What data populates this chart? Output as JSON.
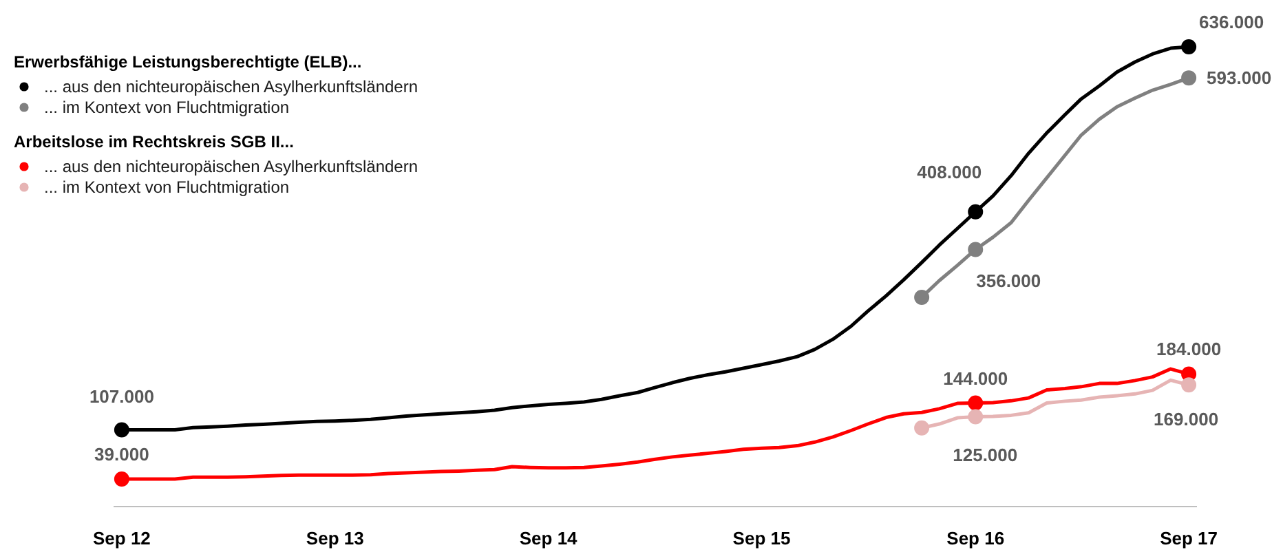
{
  "chart_data": {
    "type": "line",
    "legend_title": [
      "Erwerbsfähige Leistungsberechtigte (ELB)...",
      "Arbeitslose im Rechtskreis SGB II..."
    ],
    "legend": "top left",
    "tick_labels": "x",
    "line_style": "solid",
    "xlim": [
      "2012-08-18",
      "2017-09-15"
    ],
    "xticks": [
      {
        "value": "2012-09",
        "label": "Sep 12"
      },
      {
        "value": "2013-09",
        "label": "Sep 13"
      },
      {
        "value": "2014-09",
        "label": "Sep 14"
      },
      {
        "value": "2015-09",
        "label": "Sep 15"
      },
      {
        "value": "2016-09",
        "label": "Sep 16"
      },
      {
        "value": "2017-09",
        "label": "Sep 17"
      }
    ],
    "x": [
      "2012-09",
      "2012-10",
      "2012-11",
      "2012-12",
      "2013-01",
      "2013-02",
      "2013-03",
      "2013-04",
      "2013-05",
      "2013-06",
      "2013-07",
      "2013-08",
      "2013-09",
      "2013-10",
      "2013-11",
      "2013-12",
      "2014-01",
      "2014-02",
      "2014-03",
      "2014-04",
      "2014-05",
      "2014-06",
      "2014-07",
      "2014-08",
      "2014-09",
      "2014-10",
      "2014-11",
      "2014-12",
      "2015-01",
      "2015-02",
      "2015-03",
      "2015-04",
      "2015-05",
      "2015-06",
      "2015-07",
      "2015-08",
      "2015-09",
      "2015-10",
      "2015-11",
      "2015-12",
      "2016-01",
      "2016-02",
      "2016-03",
      "2016-04",
      "2016-05",
      "2016-06",
      "2016-07",
      "2016-08",
      "2016-09",
      "2016-10",
      "2016-11",
      "2016-12",
      "2017-01",
      "2017-02",
      "2017-03",
      "2017-04",
      "2017-05",
      "2017-06",
      "2017-07",
      "2017-08",
      "2017-09"
    ],
    "series": [
      {
        "name": "... aus den nichteuropäischen Asylherkunftsländern",
        "color": "#000000",
        "values": [
          107000,
          107000,
          107000,
          107000,
          110000,
          111000,
          112000,
          113500,
          114500,
          116000,
          117500,
          118500,
          119000,
          120000,
          121500,
          123500,
          126000,
          127500,
          129000,
          130500,
          132000,
          134000,
          137500,
          140000,
          142000,
          143500,
          145500,
          149000,
          154000,
          158500,
          165000,
          172000,
          178000,
          183000,
          187000,
          192000,
          197000,
          202000,
          208000,
          218000,
          232000,
          250000,
          271000,
          292000,
          314000,
          338000,
          362000,
          385000,
          408000,
          430000,
          458000,
          489000,
          517000,
          542000,
          564000,
          582000,
          601000,
          615000,
          626000,
          634000,
          636000
        ],
        "value_labels": [
          "107.000",
          null,
          null,
          null,
          null,
          null,
          null,
          null,
          null,
          null,
          null,
          null,
          null,
          null,
          null,
          null,
          null,
          null,
          null,
          null,
          null,
          null,
          null,
          null,
          null,
          null,
          null,
          null,
          null,
          null,
          null,
          null,
          null,
          null,
          null,
          null,
          null,
          null,
          null,
          null,
          null,
          null,
          null,
          null,
          null,
          null,
          null,
          null,
          "408.000",
          null,
          null,
          null,
          null,
          null,
          null,
          null,
          null,
          null,
          null,
          null,
          "636.000"
        ]
      },
      {
        "name": "... im Kontext von Fluchtmigration",
        "color": "#808080",
        "x": [
          "2016-06",
          "2016-07",
          "2016-08",
          "2016-09",
          "2016-10",
          "2016-11",
          "2016-12",
          "2017-01",
          "2017-02",
          "2017-03",
          "2017-04",
          "2017-05",
          "2017-06",
          "2017-07",
          "2017-08",
          "2017-09"
        ],
        "values": [
          290000,
          313000,
          334000,
          356000,
          373000,
          393000,
          424000,
          455000,
          486000,
          514000,
          536000,
          553000,
          565000,
          576000,
          584000,
          593000
        ],
        "value_labels": [
          null,
          null,
          null,
          "356.000",
          null,
          null,
          null,
          null,
          null,
          null,
          null,
          null,
          null,
          null,
          null,
          "593.000"
        ]
      },
      {
        "name": "... aus den nichteuropäischen Asylherkunftsländern",
        "color": "#ff0000",
        "values": [
          39000,
          39000,
          39000,
          39000,
          41500,
          41500,
          41500,
          42000,
          43000,
          44000,
          44500,
          44500,
          44500,
          44500,
          45000,
          46500,
          47500,
          48500,
          49500,
          50000,
          51000,
          52000,
          56000,
          55000,
          54500,
          54500,
          55000,
          57000,
          59500,
          62500,
          66000,
          69500,
          72000,
          74500,
          77000,
          80000,
          81500,
          82500,
          85000,
          90000,
          97000,
          106000,
          115000,
          124000,
          129000,
          131000,
          136000,
          143500,
          144000,
          144500,
          147000,
          151000,
          162000,
          164000,
          166500,
          171000,
          171000,
          175000,
          180000,
          191000,
          184000
        ],
        "value_labels": [
          "39.000",
          null,
          null,
          null,
          null,
          null,
          null,
          null,
          null,
          null,
          null,
          null,
          null,
          null,
          null,
          null,
          null,
          null,
          null,
          null,
          null,
          null,
          null,
          null,
          null,
          null,
          null,
          null,
          null,
          null,
          null,
          null,
          null,
          null,
          null,
          null,
          null,
          null,
          null,
          null,
          null,
          null,
          null,
          null,
          null,
          null,
          null,
          null,
          "144.000",
          null,
          null,
          null,
          null,
          null,
          null,
          null,
          null,
          null,
          null,
          null,
          "184.000"
        ]
      },
      {
        "name": "... im Kontext von Fluchtmigration",
        "color": "#e6b4b4",
        "x": [
          "2016-06",
          "2016-07",
          "2016-08",
          "2016-09",
          "2016-10",
          "2016-11",
          "2016-12",
          "2017-01",
          "2017-02",
          "2017-03",
          "2017-04",
          "2017-05",
          "2017-06",
          "2017-07",
          "2017-08",
          "2017-09"
        ],
        "values": [
          109500,
          115000,
          123500,
          125000,
          125500,
          127000,
          130500,
          144000,
          146500,
          148000,
          152000,
          154000,
          156500,
          161500,
          175500,
          169000
        ],
        "value_labels": [
          null,
          null,
          null,
          "125.000",
          null,
          null,
          null,
          null,
          null,
          null,
          null,
          null,
          null,
          null,
          null,
          "169.000"
        ]
      }
    ]
  }
}
